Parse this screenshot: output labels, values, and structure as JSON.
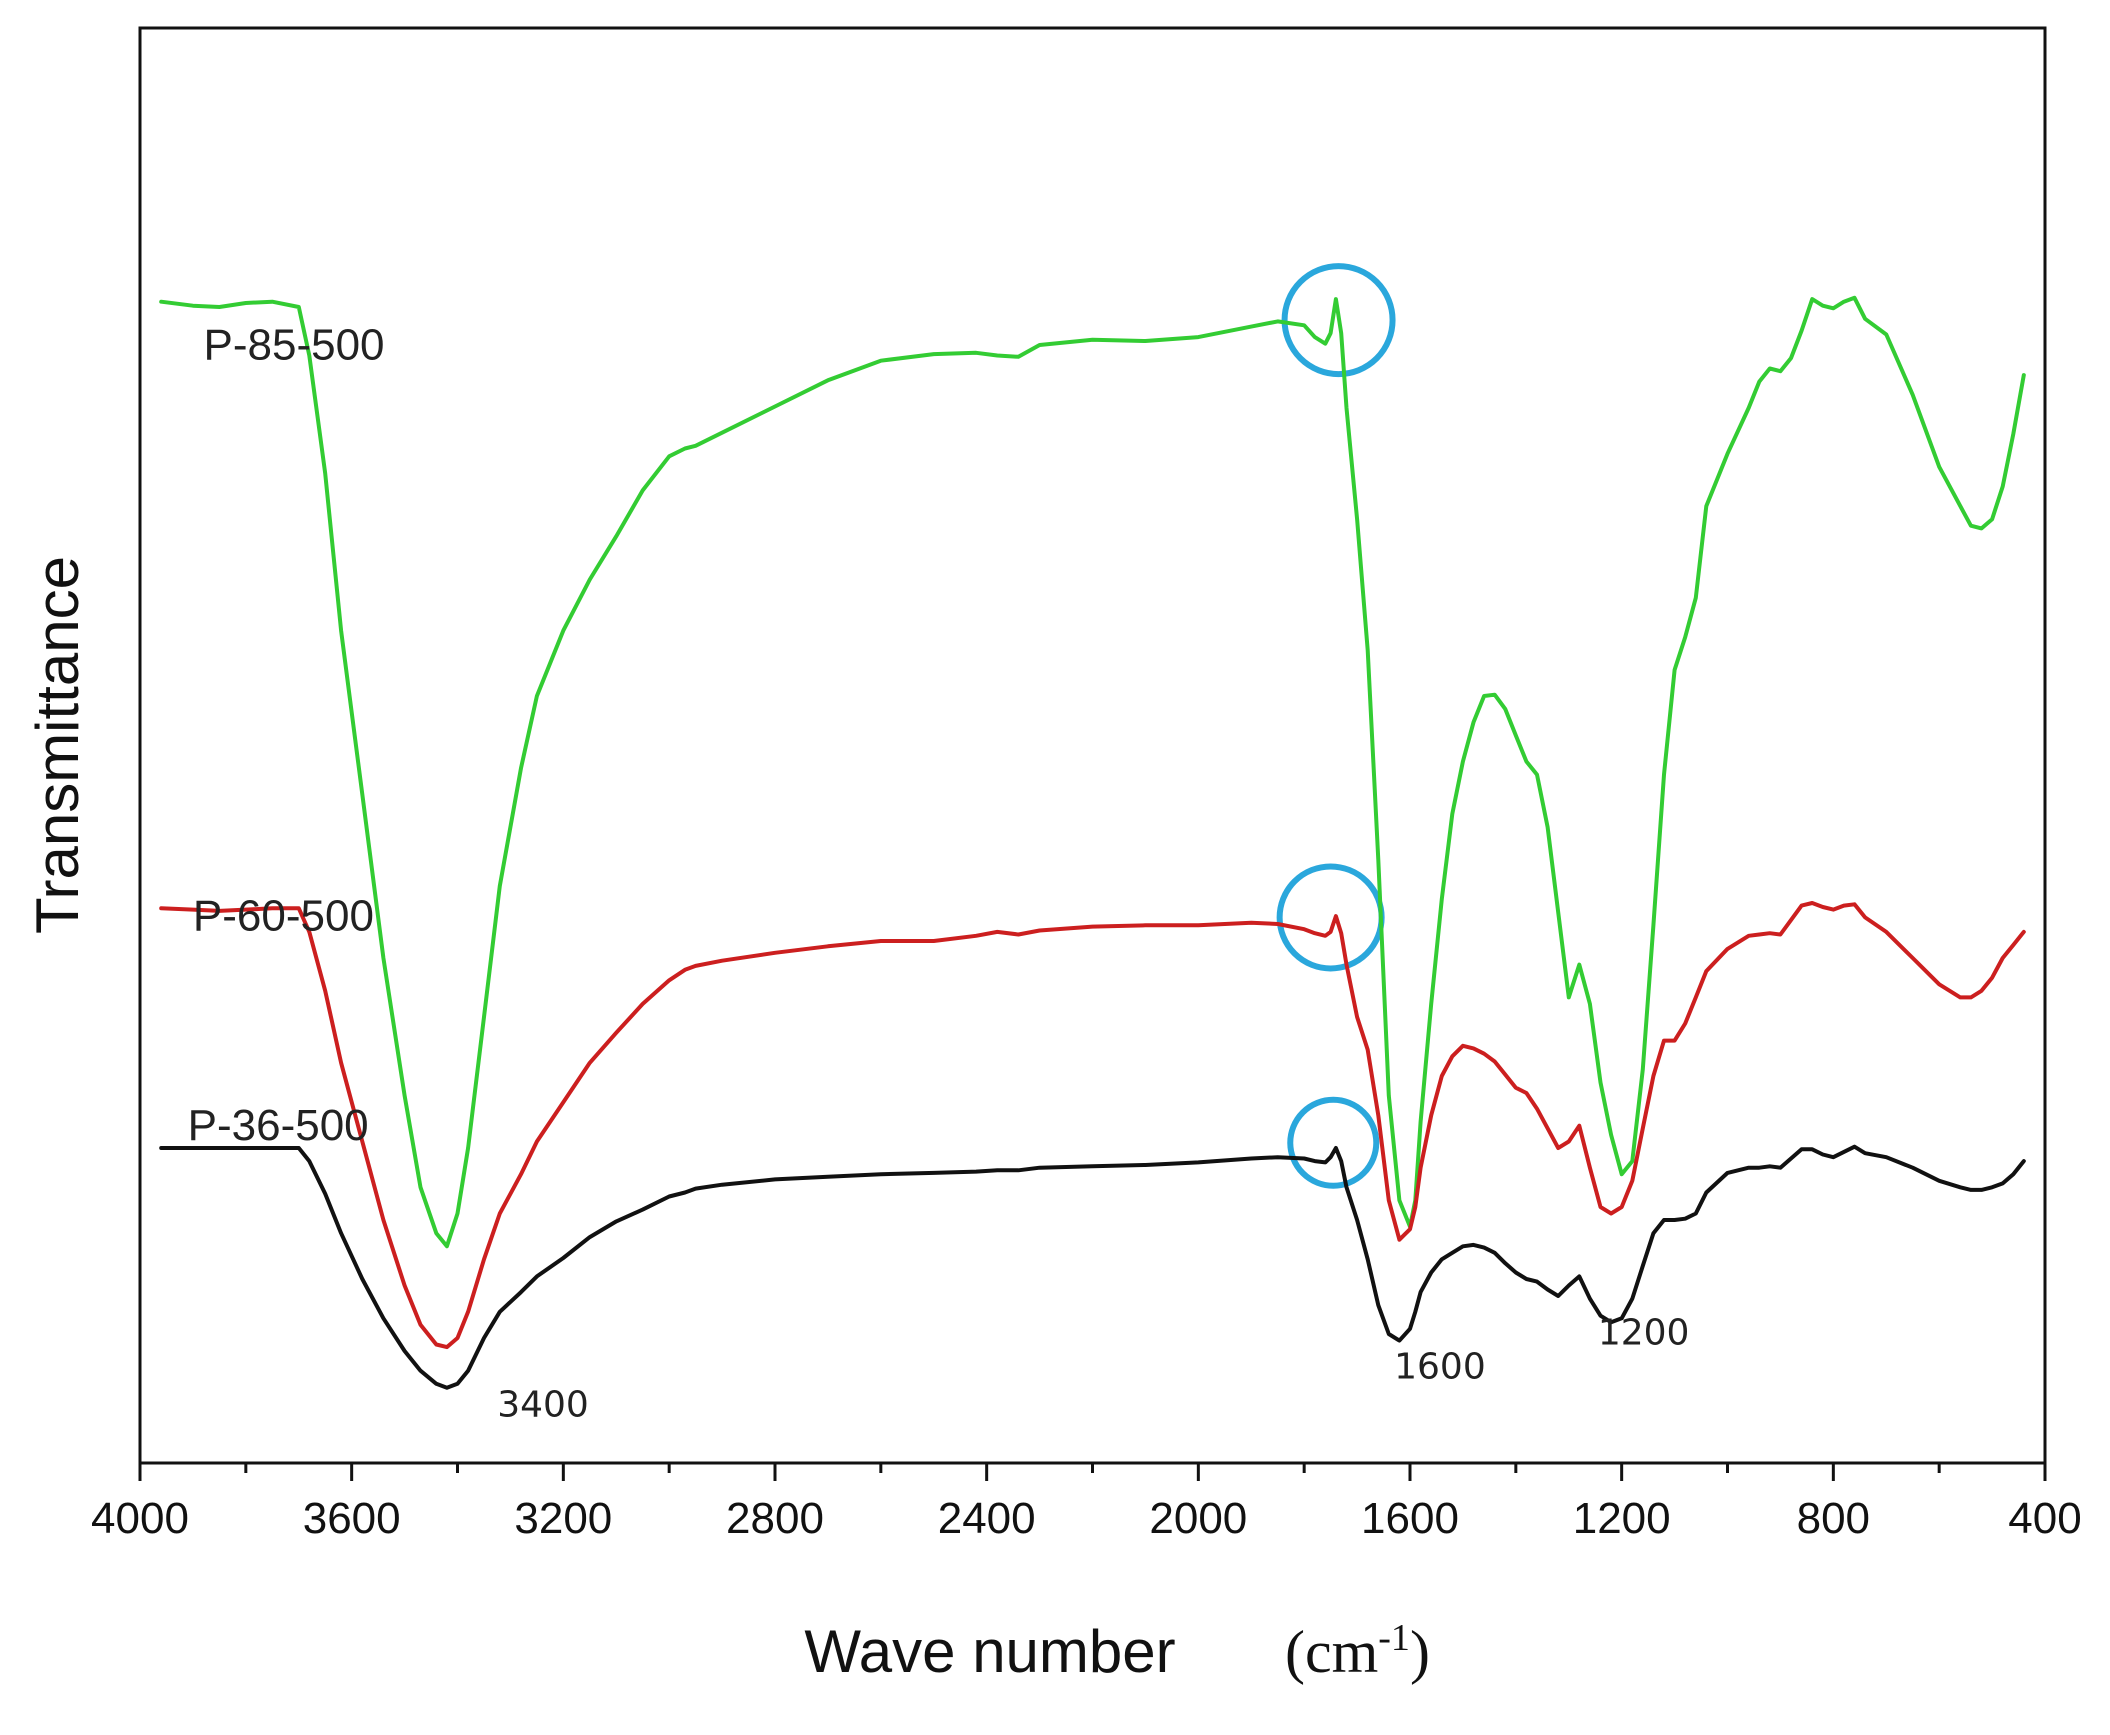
{
  "chart_data": {
    "type": "line",
    "title": "",
    "xlabel": "Wave number",
    "xlabel_unit": "(cm",
    "xlabel_unit_sup": "-1",
    "xlabel_unit_close": ")",
    "ylabel": "Transmittance",
    "xlim": [
      4000,
      400
    ],
    "ylim": [
      0,
      100
    ],
    "grid": false,
    "y_ticks_shown": false,
    "x_ticks": [
      4000,
      3600,
      3200,
      2800,
      2400,
      2000,
      1600,
      1200,
      800,
      400
    ],
    "x_tick_labels": [
      "4000",
      "3600",
      "3200",
      "2800",
      "2400",
      "2000",
      "1600",
      "1200",
      "800",
      "400"
    ],
    "colors": {
      "P-85-500": "#33cc33",
      "P-60-500": "#cc1f1f",
      "P-36-500": "#111111",
      "highlight_circle": "#2aa7dc"
    },
    "series": [
      {
        "name": "P-85-500",
        "x": [
          3960,
          3900,
          3850,
          3800,
          3750,
          3700,
          3680,
          3650,
          3620,
          3580,
          3540,
          3500,
          3470,
          3440,
          3420,
          3400,
          3380,
          3350,
          3320,
          3280,
          3250,
          3200,
          3150,
          3100,
          3050,
          3000,
          2970,
          2950,
          2900,
          2800,
          2700,
          2600,
          2500,
          2420,
          2380,
          2340,
          2300,
          2200,
          2100,
          2000,
          1900,
          1850,
          1800,
          1780,
          1760,
          1750,
          1740,
          1730,
          1720,
          1700,
          1680,
          1660,
          1640,
          1620,
          1600,
          1590,
          1580,
          1560,
          1540,
          1520,
          1500,
          1480,
          1460,
          1440,
          1420,
          1400,
          1380,
          1360,
          1340,
          1320,
          1300,
          1280,
          1260,
          1240,
          1220,
          1200,
          1180,
          1160,
          1140,
          1120,
          1100,
          1080,
          1060,
          1040,
          1000,
          960,
          940,
          920,
          900,
          880,
          860,
          840,
          820,
          800,
          780,
          760,
          740,
          700,
          650,
          600,
          560,
          540,
          520,
          500,
          480,
          460,
          440
        ],
        "y": [
          84.6,
          84.3,
          84.2,
          84.5,
          84.6,
          84.2,
          80.5,
          71.5,
          59.5,
          47,
          34.5,
          24,
          17,
          13.5,
          12.5,
          15,
          20,
          30,
          40,
          49,
          54.5,
          59.5,
          63.4,
          66.7,
          70.2,
          72.8,
          73.4,
          73.6,
          74.6,
          76.6,
          78.6,
          80.1,
          80.6,
          80.7,
          80.5,
          80.4,
          81.3,
          81.7,
          81.6,
          81.9,
          82.7,
          83.1,
          82.8,
          81.9,
          81.4,
          82.2,
          84.8,
          82.2,
          76.5,
          68,
          58,
          42,
          24,
          16,
          14,
          16,
          22,
          31,
          39,
          45.5,
          49.5,
          52.5,
          54.5,
          54.6,
          53.5,
          51.5,
          49.5,
          48.5,
          44.5,
          38,
          31.5,
          34,
          31,
          25,
          21,
          18,
          19,
          26,
          37,
          48.5,
          56.5,
          59,
          62,
          69,
          73,
          76.5,
          78.5,
          79.5,
          79.3,
          80.3,
          82.4,
          84.8,
          84.3,
          84.1,
          84.6,
          84.9,
          83.3,
          82.1,
          77.5,
          72,
          69,
          67.5,
          67.3,
          68,
          70.5,
          74.5,
          79
        ]
      },
      {
        "name": "P-60-500",
        "x": [
          3960,
          3900,
          3850,
          3800,
          3750,
          3700,
          3680,
          3650,
          3620,
          3580,
          3540,
          3500,
          3470,
          3440,
          3420,
          3400,
          3380,
          3350,
          3320,
          3280,
          3250,
          3200,
          3150,
          3100,
          3050,
          3000,
          2970,
          2950,
          2900,
          2800,
          2700,
          2600,
          2500,
          2420,
          2380,
          2340,
          2300,
          2200,
          2100,
          2000,
          1900,
          1850,
          1800,
          1780,
          1760,
          1750,
          1740,
          1730,
          1720,
          1700,
          1680,
          1660,
          1640,
          1620,
          1600,
          1590,
          1580,
          1560,
          1540,
          1520,
          1500,
          1480,
          1460,
          1440,
          1420,
          1400,
          1380,
          1360,
          1340,
          1320,
          1300,
          1280,
          1260,
          1240,
          1220,
          1200,
          1180,
          1160,
          1140,
          1120,
          1100,
          1080,
          1060,
          1040,
          1000,
          960,
          940,
          920,
          900,
          880,
          860,
          840,
          820,
          800,
          780,
          760,
          740,
          700,
          650,
          600,
          560,
          540,
          520,
          500,
          480,
          460,
          440
        ],
        "y": [
          38.3,
          38.2,
          38.1,
          38.2,
          38.3,
          38.3,
          36.5,
          32,
          26.5,
          20.5,
          14.5,
          9.5,
          6.5,
          5,
          4.8,
          5.5,
          7.5,
          11.5,
          15,
          18,
          20.5,
          23.5,
          26.5,
          28.8,
          31,
          32.8,
          33.6,
          33.9,
          34.3,
          34.9,
          35.4,
          35.8,
          35.8,
          36.2,
          36.5,
          36.3,
          36.6,
          36.9,
          37,
          37,
          37.2,
          37.1,
          36.7,
          36.4,
          36.2,
          36.5,
          37.7,
          36.4,
          34,
          30,
          27.5,
          22.5,
          16,
          13,
          13.8,
          15.5,
          18.5,
          22.5,
          25.5,
          27,
          27.8,
          27.6,
          27.2,
          26.6,
          25.6,
          24.6,
          24.2,
          23,
          21.5,
          20,
          20.5,
          21.7,
          18.5,
          15.5,
          15,
          15.5,
          17.5,
          21.5,
          25.5,
          28.2,
          28.2,
          29.5,
          31.5,
          33.5,
          35.2,
          36.2,
          36.3,
          36.4,
          36.3,
          37.4,
          38.5,
          38.7,
          38.4,
          38.2,
          38.5,
          38.6,
          37.6,
          36.5,
          34.5,
          32.5,
          31.5,
          31.5,
          32,
          33,
          34.5,
          35.5,
          36.5
        ]
      },
      {
        "name": "P-36-500",
        "x": [
          3960,
          3900,
          3850,
          3800,
          3750,
          3700,
          3680,
          3650,
          3620,
          3580,
          3540,
          3500,
          3470,
          3440,
          3420,
          3400,
          3380,
          3350,
          3320,
          3280,
          3250,
          3200,
          3150,
          3100,
          3050,
          3000,
          2970,
          2950,
          2900,
          2800,
          2700,
          2600,
          2500,
          2420,
          2380,
          2340,
          2300,
          2200,
          2100,
          2000,
          1900,
          1850,
          1800,
          1780,
          1760,
          1750,
          1740,
          1730,
          1720,
          1700,
          1680,
          1660,
          1640,
          1620,
          1600,
          1590,
          1580,
          1560,
          1540,
          1520,
          1500,
          1480,
          1460,
          1440,
          1420,
          1400,
          1380,
          1360,
          1340,
          1320,
          1300,
          1280,
          1260,
          1240,
          1220,
          1200,
          1180,
          1160,
          1140,
          1120,
          1100,
          1080,
          1060,
          1040,
          1000,
          960,
          940,
          920,
          900,
          880,
          860,
          840,
          820,
          800,
          780,
          760,
          740,
          700,
          650,
          600,
          560,
          540,
          520,
          500,
          480,
          460,
          440
        ],
        "y": [
          20,
          20,
          20,
          20,
          20,
          20,
          19,
          16.5,
          13.5,
          10,
          7,
          4.5,
          3,
          2,
          1.7,
          2,
          3,
          5.5,
          7.5,
          9,
          10.2,
          11.6,
          13.2,
          14.4,
          15.3,
          16.3,
          16.6,
          16.9,
          17.2,
          17.6,
          17.8,
          18,
          18.1,
          18.2,
          18.3,
          18.3,
          18.5,
          18.6,
          18.7,
          18.9,
          19.2,
          19.3,
          19.2,
          19.0,
          18.9,
          19.3,
          20.0,
          19.0,
          17,
          14.5,
          11.5,
          8,
          5.8,
          5.3,
          6.2,
          7.5,
          9,
          10.5,
          11.5,
          12,
          12.5,
          12.6,
          12.4,
          12,
          11.2,
          10.5,
          10,
          9.8,
          9.2,
          8.7,
          9.5,
          10.2,
          8.5,
          7.2,
          6.7,
          7,
          8.5,
          11,
          13.5,
          14.5,
          14.5,
          14.6,
          15,
          16.6,
          18.1,
          18.5,
          18.5,
          18.6,
          18.5,
          19.2,
          19.9,
          19.9,
          19.5,
          19.3,
          19.7,
          20.1,
          19.6,
          19.3,
          18.5,
          17.5,
          17.0,
          16.8,
          16.8,
          17.0,
          17.3,
          18,
          19
        ]
      }
    ],
    "series_labels": [
      {
        "text": "P-85-500",
        "x": 3880,
        "y": 80.2
      },
      {
        "text": "P-60-500",
        "x": 3900,
        "y": 36.6
      },
      {
        "text": "P-36-500",
        "x": 3910,
        "y": 20.6
      }
    ],
    "annotations": [
      {
        "text": "3400",
        "x": 3325,
        "y": -0.5
      },
      {
        "text": "1600",
        "x": 1630,
        "y": 2.4
      },
      {
        "text": "1200",
        "x": 1245,
        "y": 5.0
      }
    ],
    "highlight_circles": [
      {
        "series": "P-85-500",
        "x": 1735,
        "y": 83.2
      },
      {
        "series": "P-60-500",
        "x": 1750,
        "y": 37.6
      },
      {
        "series": "P-36-500",
        "x": 1745,
        "y": 20.4
      }
    ]
  }
}
